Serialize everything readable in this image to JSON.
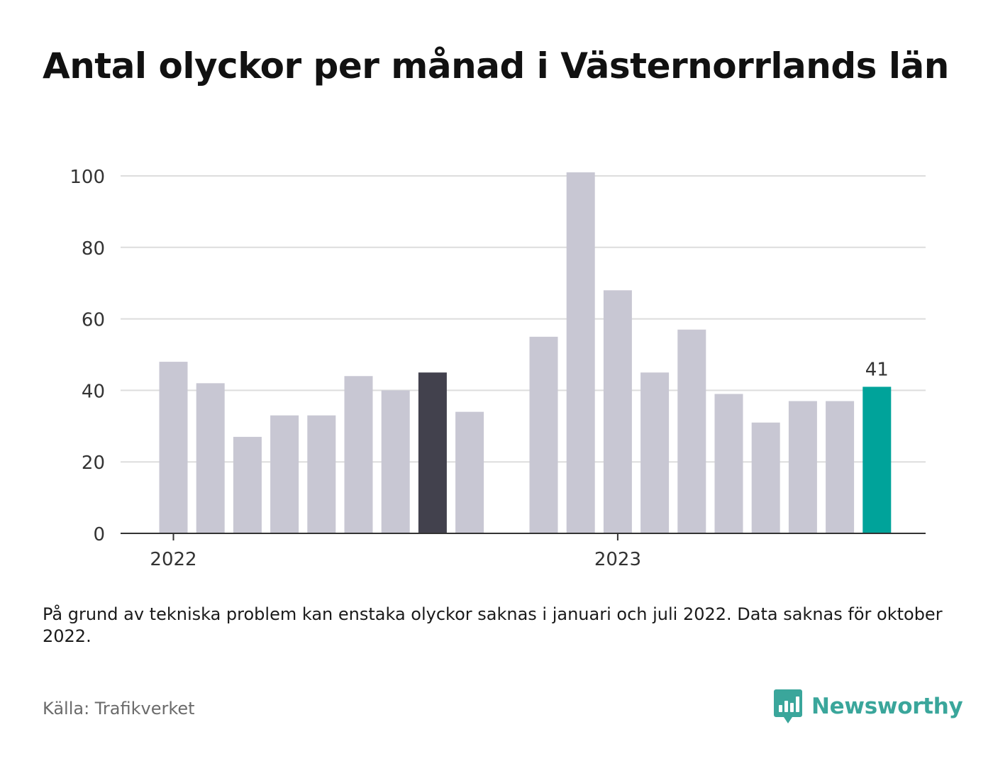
{
  "title": "Antal olyckor per månad i Västernorrlands län",
  "note": "På grund av tekniska problem kan enstaka olyckor saknas i januari och juli 2022. Data saknas för oktober 2022.",
  "source": "Källa: Trafikverket",
  "brand": {
    "name": "Newsworthy",
    "icon": "bar-chart-speech-bubble-icon",
    "color": "#3aa69b"
  },
  "chart_data": {
    "type": "bar",
    "ylim": [
      0,
      100
    ],
    "y_ticks": [
      0,
      20,
      40,
      60,
      80,
      100
    ],
    "grid": true,
    "x_tick_labels": [
      {
        "label": "2022",
        "index": 0
      },
      {
        "label": "2023",
        "index": 12
      }
    ],
    "bars": [
      {
        "period": "2022-01",
        "value": 48,
        "highlight": "none"
      },
      {
        "period": "2022-02",
        "value": 42,
        "highlight": "none"
      },
      {
        "period": "2022-03",
        "value": 27,
        "highlight": "none"
      },
      {
        "period": "2022-04",
        "value": 33,
        "highlight": "none"
      },
      {
        "period": "2022-05",
        "value": 33,
        "highlight": "none"
      },
      {
        "period": "2022-06",
        "value": 44,
        "highlight": "none"
      },
      {
        "period": "2022-07",
        "value": 40,
        "highlight": "none"
      },
      {
        "period": "2022-08",
        "value": 45,
        "highlight": "dark"
      },
      {
        "period": "2022-09",
        "value": 34,
        "highlight": "none"
      },
      {
        "period": "2022-10",
        "value": null,
        "highlight": "none"
      },
      {
        "period": "2022-11",
        "value": 55,
        "highlight": "none"
      },
      {
        "period": "2022-12",
        "value": 101,
        "highlight": "none"
      },
      {
        "period": "2023-01",
        "value": 68,
        "highlight": "none"
      },
      {
        "period": "2023-02",
        "value": 45,
        "highlight": "none"
      },
      {
        "period": "2023-03",
        "value": 57,
        "highlight": "none"
      },
      {
        "period": "2023-04",
        "value": 39,
        "highlight": "none"
      },
      {
        "period": "2023-05",
        "value": 31,
        "highlight": "none"
      },
      {
        "period": "2023-06",
        "value": 37,
        "highlight": "none"
      },
      {
        "period": "2023-07",
        "value": 37,
        "highlight": "none"
      },
      {
        "period": "2023-08",
        "value": 41,
        "highlight": "accent"
      }
    ],
    "data_labels": [
      {
        "period": "2023-08",
        "text": "41"
      }
    ],
    "colors": {
      "default": "#c8c7d3",
      "dark": "#42414d",
      "accent": "#00a39a",
      "grid": "#dddddd",
      "axis": "#333333"
    }
  }
}
